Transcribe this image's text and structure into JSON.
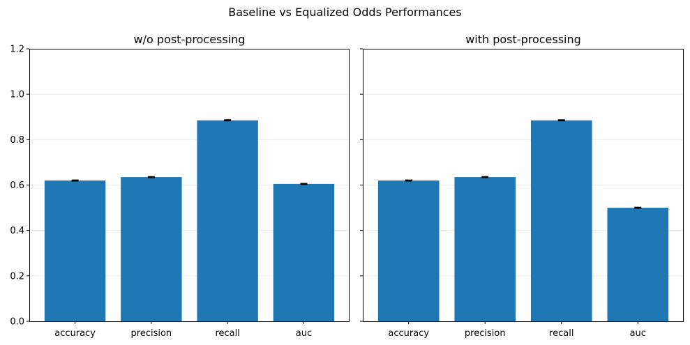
{
  "figure": {
    "suptitle": "Baseline vs Equalized Odds Performances"
  },
  "chart_data": [
    {
      "type": "bar",
      "title": "w/o post-processing",
      "xlabel": "",
      "ylabel": "",
      "categories": [
        "accuracy",
        "precision",
        "recall",
        "auc"
      ],
      "values": [
        0.62,
        0.635,
        0.885,
        0.605
      ],
      "errors": [
        0.002,
        0.002,
        0.002,
        0.002
      ],
      "ylim": [
        0,
        1.2
      ],
      "yticks": [
        0.0,
        0.2,
        0.4,
        0.6,
        0.8,
        1.0,
        1.2
      ],
      "ytick_labels": [
        "0.0",
        "0.2",
        "0.4",
        "0.6",
        "0.8",
        "1.0",
        "1.2"
      ],
      "show_ytick_labels": true,
      "bar_color": "#1f77b4",
      "grid": true
    },
    {
      "type": "bar",
      "title": "with post-processing",
      "xlabel": "",
      "ylabel": "",
      "categories": [
        "accuracy",
        "precision",
        "recall",
        "auc"
      ],
      "values": [
        0.62,
        0.635,
        0.885,
        0.5
      ],
      "errors": [
        0.002,
        0.002,
        0.002,
        0.002
      ],
      "ylim": [
        0,
        1.2
      ],
      "yticks": [
        0.0,
        0.2,
        0.4,
        0.6,
        0.8,
        1.0,
        1.2
      ],
      "ytick_labels": [
        "0.0",
        "0.2",
        "0.4",
        "0.6",
        "0.8",
        "1.0",
        "1.2"
      ],
      "show_ytick_labels": false,
      "bar_color": "#1f77b4",
      "grid": true
    }
  ]
}
